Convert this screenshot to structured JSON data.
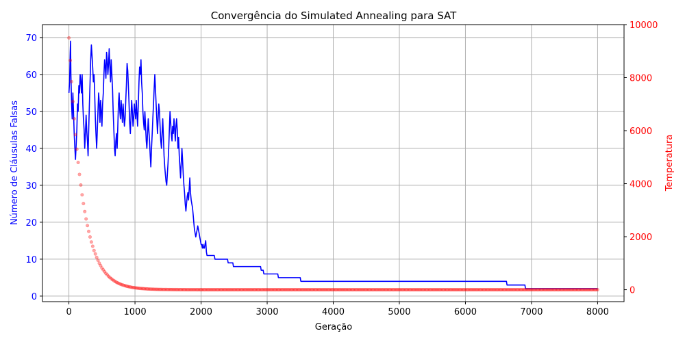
{
  "chart_data": {
    "type": "line",
    "title": "Convergência do Simulated Annealing para SAT",
    "xlabel": "Geração",
    "ylabel_left": "Número de Cláusulas Falsas",
    "ylabel_right": "Temperatura",
    "xlim": [
      -400,
      8400
    ],
    "ylim_left": [
      -1.5,
      73.5
    ],
    "ylim_right": [
      -450,
      10000
    ],
    "x_ticks": [
      0,
      1000,
      2000,
      3000,
      4000,
      5000,
      6000,
      7000,
      8000
    ],
    "y_left_ticks": [
      0,
      10,
      20,
      30,
      40,
      50,
      60,
      70
    ],
    "y_right_ticks": [
      0,
      2000,
      4000,
      6000,
      8000,
      10000
    ],
    "grid": true,
    "colors": {
      "left_series": "#0000ff",
      "right_series": "#ff0000",
      "grid": "#b0b0b0"
    },
    "series": [
      {
        "axis": "left",
        "style": "line",
        "points": [
          [
            0,
            55
          ],
          [
            10,
            58
          ],
          [
            20,
            66
          ],
          [
            25,
            69
          ],
          [
            30,
            60
          ],
          [
            40,
            52
          ],
          [
            50,
            48
          ],
          [
            60,
            55
          ],
          [
            70,
            50
          ],
          [
            80,
            44
          ],
          [
            90,
            40
          ],
          [
            100,
            37
          ],
          [
            110,
            41
          ],
          [
            120,
            45
          ],
          [
            130,
            52
          ],
          [
            140,
            50
          ],
          [
            150,
            57
          ],
          [
            160,
            55
          ],
          [
            170,
            60
          ],
          [
            180,
            58
          ],
          [
            190,
            55
          ],
          [
            200,
            60
          ],
          [
            210,
            52
          ],
          [
            220,
            48
          ],
          [
            230,
            45
          ],
          [
            240,
            40
          ],
          [
            250,
            44
          ],
          [
            260,
            49
          ],
          [
            270,
            45
          ],
          [
            280,
            42
          ],
          [
            290,
            38
          ],
          [
            300,
            45
          ],
          [
            310,
            52
          ],
          [
            320,
            58
          ],
          [
            330,
            64
          ],
          [
            340,
            68
          ],
          [
            350,
            65
          ],
          [
            360,
            62
          ],
          [
            370,
            58
          ],
          [
            380,
            60
          ],
          [
            390,
            55
          ],
          [
            400,
            48
          ],
          [
            410,
            44
          ],
          [
            420,
            40
          ],
          [
            430,
            45
          ],
          [
            440,
            50
          ],
          [
            450,
            55
          ],
          [
            460,
            52
          ],
          [
            470,
            47
          ],
          [
            480,
            53
          ],
          [
            490,
            50
          ],
          [
            500,
            46
          ],
          [
            510,
            52
          ],
          [
            520,
            55
          ],
          [
            530,
            60
          ],
          [
            540,
            64
          ],
          [
            550,
            62
          ],
          [
            560,
            59
          ],
          [
            570,
            66
          ],
          [
            580,
            64
          ],
          [
            590,
            60
          ],
          [
            600,
            63
          ],
          [
            610,
            67
          ],
          [
            620,
            62
          ],
          [
            630,
            58
          ],
          [
            640,
            64
          ],
          [
            650,
            60
          ],
          [
            660,
            56
          ],
          [
            670,
            50
          ],
          [
            680,
            45
          ],
          [
            690,
            40
          ],
          [
            700,
            38
          ],
          [
            710,
            42
          ],
          [
            720,
            44
          ],
          [
            730,
            40
          ],
          [
            740,
            46
          ],
          [
            750,
            52
          ],
          [
            760,
            55
          ],
          [
            770,
            50
          ],
          [
            780,
            48
          ],
          [
            790,
            53
          ],
          [
            800,
            50
          ],
          [
            810,
            47
          ],
          [
            820,
            52
          ],
          [
            830,
            49
          ],
          [
            840,
            46
          ],
          [
            850,
            48
          ],
          [
            860,
            53
          ],
          [
            870,
            57
          ],
          [
            880,
            63
          ],
          [
            890,
            61
          ],
          [
            900,
            57
          ],
          [
            910,
            52
          ],
          [
            920,
            47
          ],
          [
            930,
            44
          ],
          [
            940,
            49
          ],
          [
            950,
            53
          ],
          [
            960,
            50
          ],
          [
            970,
            46
          ],
          [
            980,
            48
          ],
          [
            990,
            52
          ],
          [
            1000,
            50
          ],
          [
            1010,
            48
          ],
          [
            1020,
            53
          ],
          [
            1030,
            49
          ],
          [
            1040,
            46
          ],
          [
            1050,
            52
          ],
          [
            1060,
            58
          ],
          [
            1070,
            62
          ],
          [
            1080,
            60
          ],
          [
            1090,
            64
          ],
          [
            1100,
            58
          ],
          [
            1110,
            55
          ],
          [
            1120,
            50
          ],
          [
            1130,
            47
          ],
          [
            1140,
            45
          ],
          [
            1150,
            50
          ],
          [
            1160,
            46
          ],
          [
            1170,
            42
          ],
          [
            1180,
            40
          ],
          [
            1190,
            44
          ],
          [
            1200,
            48
          ],
          [
            1210,
            45
          ],
          [
            1220,
            42
          ],
          [
            1230,
            38
          ],
          [
            1240,
            35
          ],
          [
            1250,
            40
          ],
          [
            1260,
            44
          ],
          [
            1270,
            48
          ],
          [
            1280,
            52
          ],
          [
            1290,
            56
          ],
          [
            1300,
            60
          ],
          [
            1310,
            56
          ],
          [
            1320,
            52
          ],
          [
            1330,
            48
          ],
          [
            1340,
            44
          ],
          [
            1350,
            48
          ],
          [
            1360,
            52
          ],
          [
            1370,
            50
          ],
          [
            1380,
            46
          ],
          [
            1390,
            42
          ],
          [
            1400,
            40
          ],
          [
            1410,
            44
          ],
          [
            1420,
            48
          ],
          [
            1430,
            43
          ],
          [
            1440,
            38
          ],
          [
            1450,
            35
          ],
          [
            1460,
            33
          ],
          [
            1470,
            31
          ],
          [
            1480,
            30
          ],
          [
            1490,
            33
          ],
          [
            1500,
            36
          ],
          [
            1510,
            40
          ],
          [
            1520,
            45
          ],
          [
            1530,
            50
          ],
          [
            1540,
            47
          ],
          [
            1550,
            44
          ],
          [
            1560,
            42
          ],
          [
            1570,
            46
          ],
          [
            1580,
            44
          ],
          [
            1590,
            48
          ],
          [
            1600,
            45
          ],
          [
            1610,
            42
          ],
          [
            1620,
            46
          ],
          [
            1630,
            48
          ],
          [
            1640,
            45
          ],
          [
            1650,
            40
          ],
          [
            1660,
            43
          ],
          [
            1670,
            38
          ],
          [
            1680,
            35
          ],
          [
            1690,
            32
          ],
          [
            1700,
            36
          ],
          [
            1710,
            40
          ],
          [
            1720,
            37
          ],
          [
            1730,
            33
          ],
          [
            1740,
            30
          ],
          [
            1750,
            28
          ],
          [
            1760,
            25
          ],
          [
            1770,
            23
          ],
          [
            1780,
            25
          ],
          [
            1790,
            27
          ],
          [
            1800,
            28
          ],
          [
            1810,
            26
          ],
          [
            1820,
            29
          ],
          [
            1830,
            32
          ],
          [
            1840,
            28
          ],
          [
            1850,
            26
          ],
          [
            1860,
            25
          ],
          [
            1870,
            24
          ],
          [
            1880,
            22
          ],
          [
            1890,
            20
          ],
          [
            1900,
            18
          ],
          [
            1910,
            17
          ],
          [
            1920,
            16
          ],
          [
            1930,
            17
          ],
          [
            1940,
            18
          ],
          [
            1950,
            19
          ],
          [
            1960,
            18
          ],
          [
            1970,
            17
          ],
          [
            1980,
            16
          ],
          [
            1990,
            15
          ],
          [
            2000,
            14
          ],
          [
            2010,
            14
          ],
          [
            2020,
            13
          ],
          [
            2030,
            14
          ],
          [
            2040,
            13
          ],
          [
            2050,
            13
          ],
          [
            2060,
            14
          ],
          [
            2070,
            15
          ],
          [
            2080,
            12
          ],
          [
            2090,
            11
          ],
          [
            2100,
            11
          ],
          [
            2200,
            11
          ],
          [
            2210,
            10
          ],
          [
            2400,
            10
          ],
          [
            2410,
            9
          ],
          [
            2480,
            9
          ],
          [
            2490,
            8
          ],
          [
            2900,
            8
          ],
          [
            2910,
            7
          ],
          [
            2940,
            7
          ],
          [
            2950,
            6
          ],
          [
            3160,
            6
          ],
          [
            3170,
            5
          ],
          [
            3500,
            5
          ],
          [
            3510,
            4
          ],
          [
            6620,
            4
          ],
          [
            6630,
            3
          ],
          [
            6900,
            3
          ],
          [
            6910,
            2
          ],
          [
            8000,
            2
          ]
        ]
      },
      {
        "axis": "right",
        "style": "markers",
        "points": [
          [
            0,
            9500
          ],
          [
            20,
            8650
          ],
          [
            40,
            7850
          ],
          [
            60,
            7100
          ],
          [
            80,
            6450
          ],
          [
            100,
            5850
          ],
          [
            120,
            5300
          ],
          [
            140,
            4800
          ],
          [
            160,
            4350
          ],
          [
            180,
            3950
          ],
          [
            200,
            3580
          ],
          [
            220,
            3250
          ],
          [
            240,
            2950
          ],
          [
            260,
            2670
          ],
          [
            280,
            2420
          ],
          [
            300,
            2200
          ],
          [
            320,
            1990
          ],
          [
            340,
            1800
          ],
          [
            360,
            1640
          ],
          [
            380,
            1480
          ],
          [
            400,
            1350
          ],
          [
            420,
            1220
          ],
          [
            440,
            1110
          ],
          [
            460,
            1000
          ],
          [
            480,
            910
          ],
          [
            500,
            820
          ],
          [
            520,
            750
          ],
          [
            540,
            680
          ],
          [
            560,
            615
          ],
          [
            580,
            560
          ],
          [
            600,
            505
          ],
          [
            620,
            460
          ],
          [
            640,
            415
          ],
          [
            660,
            380
          ],
          [
            680,
            345
          ],
          [
            700,
            310
          ],
          [
            720,
            280
          ],
          [
            740,
            255
          ],
          [
            760,
            232
          ],
          [
            780,
            210
          ],
          [
            800,
            190
          ],
          [
            820,
            173
          ],
          [
            840,
            157
          ],
          [
            860,
            142
          ],
          [
            880,
            129
          ],
          [
            900,
            117
          ],
          [
            920,
            106
          ],
          [
            940,
            96
          ],
          [
            960,
            87
          ],
          [
            980,
            79
          ],
          [
            1000,
            72
          ],
          [
            1020,
            65
          ],
          [
            1040,
            59
          ],
          [
            1060,
            53
          ],
          [
            1080,
            48
          ],
          [
            1100,
            44
          ],
          [
            1120,
            40
          ],
          [
            1140,
            36
          ],
          [
            1160,
            33
          ],
          [
            1180,
            30
          ],
          [
            1200,
            27
          ],
          [
            1220,
            24
          ],
          [
            1240,
            22
          ],
          [
            1260,
            20
          ],
          [
            1280,
            18
          ],
          [
            1300,
            16
          ],
          [
            1320,
            15
          ],
          [
            1340,
            13
          ],
          [
            1360,
            12
          ],
          [
            1380,
            11
          ],
          [
            1400,
            10
          ],
          [
            1420,
            9
          ],
          [
            1440,
            8
          ],
          [
            1460,
            7
          ],
          [
            1480,
            7
          ],
          [
            1500,
            6
          ],
          [
            1600,
            4
          ],
          [
            1700,
            2
          ],
          [
            1800,
            1
          ],
          [
            2000,
            0
          ],
          [
            2500,
            0
          ],
          [
            3000,
            0
          ],
          [
            3500,
            0
          ],
          [
            4000,
            0
          ],
          [
            4500,
            0
          ],
          [
            5000,
            0
          ],
          [
            5500,
            0
          ],
          [
            6000,
            0
          ],
          [
            6500,
            0
          ],
          [
            7000,
            0
          ],
          [
            7500,
            0
          ],
          [
            8000,
            0
          ]
        ]
      }
    ]
  }
}
